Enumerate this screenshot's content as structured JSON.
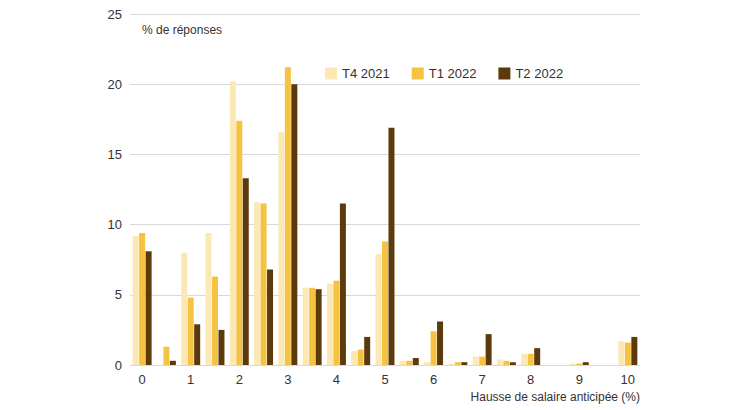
{
  "chart_data": {
    "type": "bar",
    "y_label": "% de réponses",
    "x_label": "Hausse de salaire anticipée (%)",
    "categories": [
      0,
      null,
      1,
      null,
      2,
      null,
      3,
      null,
      4,
      null,
      5,
      null,
      6,
      null,
      7,
      null,
      8,
      null,
      9,
      null,
      10
    ],
    "series": [
      {
        "name": "T4 2021",
        "color": "#fbe8b5",
        "values": [
          9.2,
          0,
          8.0,
          9.4,
          20.2,
          11.6,
          16.6,
          5.5,
          5.8,
          1.0,
          7.9,
          0.3,
          0.2,
          0.1,
          0.6,
          0.4,
          0.8,
          0,
          0.1,
          0,
          1.7
        ]
      },
      {
        "name": "T1 2022",
        "color": "#f5c242",
        "values": [
          9.4,
          1.3,
          4.8,
          6.3,
          17.4,
          11.5,
          21.2,
          5.5,
          6.0,
          1.1,
          8.8,
          0.3,
          2.4,
          0.2,
          0.6,
          0.3,
          0.8,
          0,
          0.1,
          0,
          1.6
        ]
      },
      {
        "name": "T2 2022",
        "color": "#5c3a0b",
        "values": [
          8.1,
          0.3,
          2.9,
          2.5,
          13.3,
          6.8,
          20.0,
          5.4,
          11.5,
          2.0,
          16.9,
          0.5,
          3.1,
          0.2,
          2.2,
          0.2,
          1.2,
          0,
          0.2,
          0,
          2.0
        ]
      }
    ],
    "ylim": [
      0,
      25
    ],
    "yticks": [
      0,
      5,
      10,
      15,
      20,
      25
    ],
    "grid": true,
    "legend": "top"
  }
}
